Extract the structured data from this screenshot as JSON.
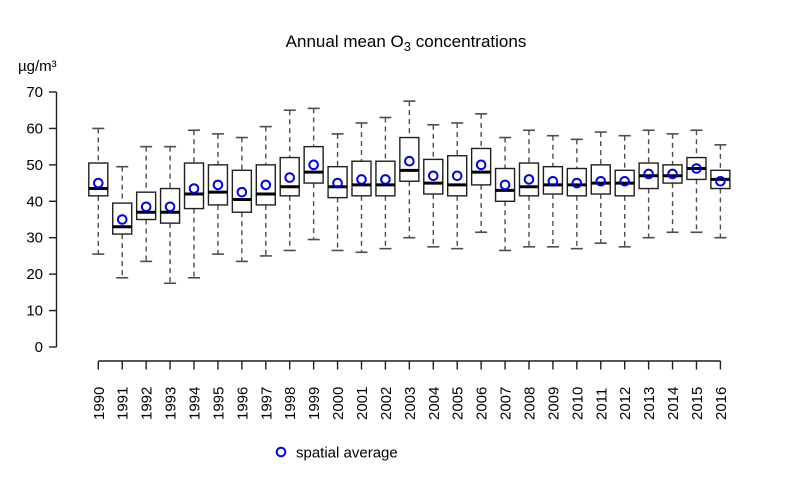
{
  "title": {
    "prefix": "Annual mean O",
    "subscript": "3",
    "suffix": " concentrations"
  },
  "y_axis": {
    "unit_label": "µg/m³",
    "min": 0,
    "max": 70,
    "ticks": [
      0,
      10,
      20,
      30,
      40,
      50,
      60,
      70
    ]
  },
  "legend": {
    "label": "spatial average",
    "marker": "open-circle"
  },
  "colors": {
    "background": "#ffffff",
    "axis": "#1f1f1f",
    "text": "#000000",
    "box_stroke": "#1f1f1f",
    "box_fill": "#ffffff",
    "median": "#000000",
    "whisker": "#4d4d4d",
    "average_marker": "#0000ee"
  },
  "chart_data": {
    "type": "boxplot",
    "title": "Annual mean O3 concentrations",
    "xlabel": "",
    "ylabel": "µg/m³",
    "ylim": [
      0,
      70
    ],
    "y_ticks": [
      0,
      10,
      20,
      30,
      40,
      50,
      60,
      70
    ],
    "grid": false,
    "legend_position": "bottom",
    "legend_entries": [
      "spatial average"
    ],
    "categories": [
      "1990",
      "1991",
      "1992",
      "1993",
      "1994",
      "1995",
      "1996",
      "1997",
      "1998",
      "1999",
      "2000",
      "2001",
      "2002",
      "2003",
      "2004",
      "2005",
      "2006",
      "2007",
      "2008",
      "2009",
      "2010",
      "2011",
      "2012",
      "2013",
      "2014",
      "2015",
      "2016"
    ],
    "series": [
      {
        "year": "1990",
        "whisker_low": 25.5,
        "q1": 41.5,
        "median": 43.5,
        "q3": 50.5,
        "whisker_high": 60,
        "spatial_average": 45
      },
      {
        "year": "1991",
        "whisker_low": 19,
        "q1": 31,
        "median": 33,
        "q3": 39.5,
        "whisker_high": 49.5,
        "spatial_average": 35
      },
      {
        "year": "1992",
        "whisker_low": 23.5,
        "q1": 35,
        "median": 37,
        "q3": 42.5,
        "whisker_high": 55,
        "spatial_average": 38.5
      },
      {
        "year": "1993",
        "whisker_low": 17.5,
        "q1": 34,
        "median": 37,
        "q3": 43.5,
        "whisker_high": 55,
        "spatial_average": 38.5
      },
      {
        "year": "1994",
        "whisker_low": 19,
        "q1": 38,
        "median": 42,
        "q3": 50.5,
        "whisker_high": 59.5,
        "spatial_average": 43.5
      },
      {
        "year": "1995",
        "whisker_low": 25.5,
        "q1": 39,
        "median": 42.5,
        "q3": 50,
        "whisker_high": 58.5,
        "spatial_average": 44.5
      },
      {
        "year": "1996",
        "whisker_low": 23.5,
        "q1": 37,
        "median": 40.5,
        "q3": 48.5,
        "whisker_high": 57.5,
        "spatial_average": 42.5
      },
      {
        "year": "1997",
        "whisker_low": 25,
        "q1": 39,
        "median": 42,
        "q3": 50,
        "whisker_high": 60.5,
        "spatial_average": 44.5
      },
      {
        "year": "1998",
        "whisker_low": 26.5,
        "q1": 41.5,
        "median": 44,
        "q3": 52,
        "whisker_high": 65,
        "spatial_average": 46.5
      },
      {
        "year": "1999",
        "whisker_low": 29.5,
        "q1": 45,
        "median": 48,
        "q3": 55,
        "whisker_high": 65.5,
        "spatial_average": 50
      },
      {
        "year": "2000",
        "whisker_low": 26.5,
        "q1": 41,
        "median": 44,
        "q3": 49.5,
        "whisker_high": 58.5,
        "spatial_average": 45
      },
      {
        "year": "2001",
        "whisker_low": 26,
        "q1": 41.5,
        "median": 44.5,
        "q3": 51,
        "whisker_high": 61.5,
        "spatial_average": 46
      },
      {
        "year": "2002",
        "whisker_low": 27,
        "q1": 41.5,
        "median": 44.5,
        "q3": 51,
        "whisker_high": 63,
        "spatial_average": 46
      },
      {
        "year": "2003",
        "whisker_low": 30,
        "q1": 45.5,
        "median": 48.5,
        "q3": 57.5,
        "whisker_high": 67.5,
        "spatial_average": 51
      },
      {
        "year": "2004",
        "whisker_low": 27.5,
        "q1": 42,
        "median": 45,
        "q3": 51.5,
        "whisker_high": 61,
        "spatial_average": 47
      },
      {
        "year": "2005",
        "whisker_low": 27,
        "q1": 41.5,
        "median": 44.5,
        "q3": 52.5,
        "whisker_high": 61.5,
        "spatial_average": 47
      },
      {
        "year": "2006",
        "whisker_low": 31.5,
        "q1": 44.5,
        "median": 48,
        "q3": 54.5,
        "whisker_high": 64,
        "spatial_average": 50
      },
      {
        "year": "2007",
        "whisker_low": 26.5,
        "q1": 40,
        "median": 43,
        "q3": 49,
        "whisker_high": 57.5,
        "spatial_average": 44.5
      },
      {
        "year": "2008",
        "whisker_low": 27.5,
        "q1": 41.5,
        "median": 44,
        "q3": 50.5,
        "whisker_high": 59.5,
        "spatial_average": 46
      },
      {
        "year": "2009",
        "whisker_low": 27.5,
        "q1": 42,
        "median": 44.5,
        "q3": 49.5,
        "whisker_high": 58,
        "spatial_average": 45.5
      },
      {
        "year": "2010",
        "whisker_low": 27,
        "q1": 41.5,
        "median": 44.5,
        "q3": 49,
        "whisker_high": 57,
        "spatial_average": 45
      },
      {
        "year": "2011",
        "whisker_low": 28.5,
        "q1": 42,
        "median": 45,
        "q3": 50,
        "whisker_high": 59,
        "spatial_average": 45.5
      },
      {
        "year": "2012",
        "whisker_low": 27.5,
        "q1": 41.5,
        "median": 45,
        "q3": 48.5,
        "whisker_high": 58,
        "spatial_average": 45.5
      },
      {
        "year": "2013",
        "whisker_low": 30,
        "q1": 43.5,
        "median": 47,
        "q3": 50.5,
        "whisker_high": 59.5,
        "spatial_average": 47.5
      },
      {
        "year": "2014",
        "whisker_low": 31.5,
        "q1": 45,
        "median": 47,
        "q3": 50,
        "whisker_high": 58.5,
        "spatial_average": 47.5
      },
      {
        "year": "2015",
        "whisker_low": 31.5,
        "q1": 46,
        "median": 49,
        "q3": 52,
        "whisker_high": 59.5,
        "spatial_average": 49
      },
      {
        "year": "2016",
        "whisker_low": 30,
        "q1": 43.5,
        "median": 46,
        "q3": 48.5,
        "whisker_high": 55.5,
        "spatial_average": 45.5
      }
    ]
  }
}
